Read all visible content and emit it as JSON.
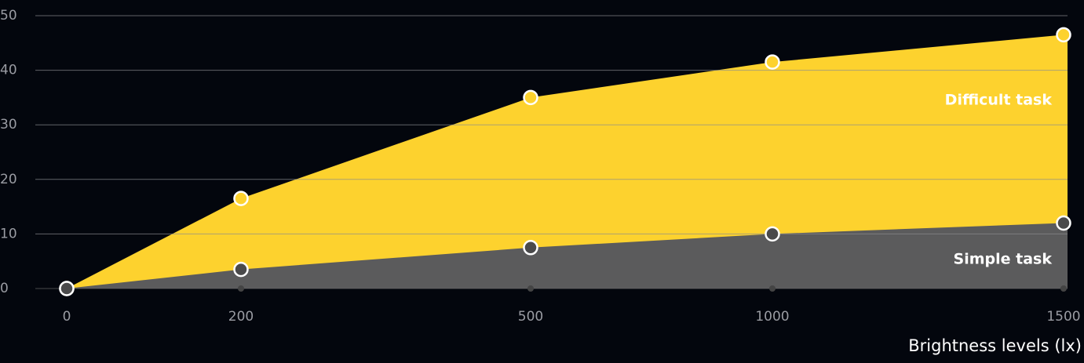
{
  "chart_data": {
    "type": "area",
    "x_label": "Brightness levels (lx)",
    "categories": [
      "0",
      "200",
      "500",
      "1000",
      "1500"
    ],
    "series": [
      {
        "name": "Difficult task",
        "color": "#fdd22e",
        "values": [
          0,
          16.5,
          35,
          41.5,
          46.5
        ]
      },
      {
        "name": "Simple task",
        "color": "#5b5b5c",
        "values": [
          0,
          3.5,
          7.5,
          10,
          12
        ]
      }
    ],
    "ylim": [
      0,
      50
    ],
    "yticks": [
      0,
      10,
      20,
      30,
      40,
      50
    ],
    "grid": true
  }
}
